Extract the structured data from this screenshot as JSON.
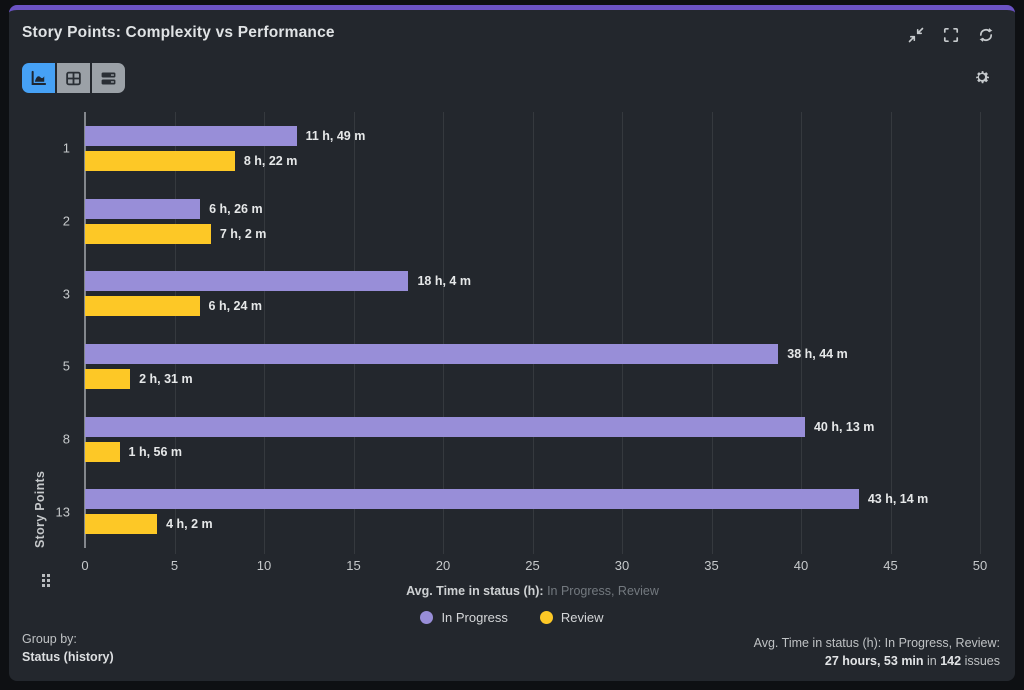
{
  "header": {
    "title": "Story Points: Complexity vs Performance",
    "window_icons": [
      "compress-icon",
      "fullscreen-icon",
      "refresh-icon"
    ]
  },
  "toolbar": {
    "view_buttons": [
      "chart-view",
      "table-view",
      "rows-view"
    ],
    "active_view": "chart-view",
    "settings_icon": "gear-icon"
  },
  "chart_data": {
    "type": "bar",
    "orientation": "horizontal",
    "title": "Story Points: Complexity vs Performance",
    "categories": [
      "1",
      "2",
      "3",
      "5",
      "8",
      "13"
    ],
    "series": [
      {
        "name": "In Progress",
        "color": "#988ed8",
        "values": [
          11.82,
          6.43,
          18.07,
          38.73,
          40.22,
          43.23
        ],
        "labels": [
          "11 h, 49 m",
          "6 h, 26 m",
          "18 h, 4 m",
          "38 h, 44 m",
          "40 h, 13 m",
          "43 h, 14 m"
        ]
      },
      {
        "name": "Review",
        "color": "#fdc826",
        "values": [
          8.37,
          7.03,
          6.4,
          2.52,
          1.93,
          4.03
        ],
        "labels": [
          "8 h, 22 m",
          "7 h, 2 m",
          "6 h, 24 m",
          "2 h, 31 m",
          "1 h, 56 m",
          "4 h, 2 m"
        ]
      }
    ],
    "ylabel": "Story Points",
    "xlabel_bold": "Avg. Time in status (h):",
    "xlabel_dim": " In Progress, Review",
    "xlim": [
      0,
      50
    ],
    "x_ticks": [
      0,
      5,
      10,
      15,
      20,
      25,
      30,
      35,
      40,
      45,
      50
    ],
    "grid": true,
    "legend_position": "bottom"
  },
  "legend": {
    "items": [
      {
        "label": "In Progress",
        "color": "#988ed8"
      },
      {
        "label": "Review",
        "color": "#fdc826"
      }
    ]
  },
  "footer": {
    "group_by_label": "Group by:",
    "group_by_value": "Status (history)",
    "summary_line1": "Avg. Time in status (h): In Progress, Review:",
    "summary_bold1": "27 hours, 53 min",
    "summary_mid": " in ",
    "summary_bold2": "142",
    "summary_tail": " issues"
  },
  "colors": {
    "accent_bar": "#6b53c4",
    "widget_bg": "#23272d",
    "frame_bg": "#0e1013",
    "active_toggle": "#46a1f5",
    "inactive_toggle": "#9ba1a7",
    "gridline": "#35393e",
    "axis_line": "#83878c"
  }
}
